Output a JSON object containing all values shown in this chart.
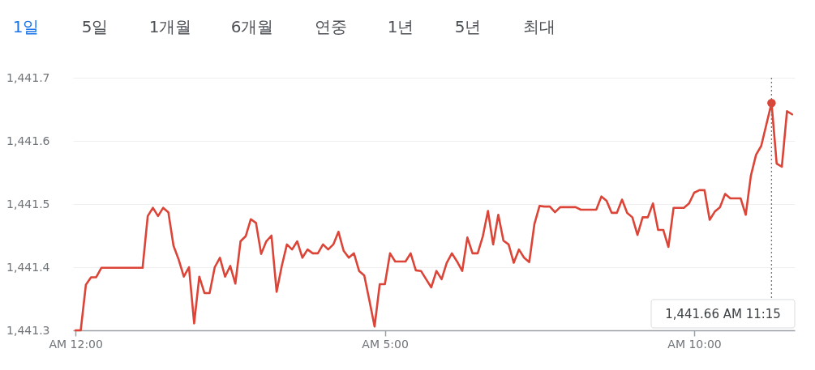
{
  "chart_data": {
    "type": "line",
    "categories": [
      "AM 12:00",
      null,
      null,
      null,
      null,
      null,
      null,
      null,
      null,
      null,
      null,
      null,
      null,
      null,
      null,
      null,
      null,
      null,
      null,
      null,
      null,
      null,
      null,
      null,
      null,
      null,
      null,
      null,
      null,
      null,
      null,
      null,
      null,
      null,
      null,
      null,
      null,
      null,
      null,
      null,
      null,
      null,
      null,
      null,
      null,
      null,
      null,
      null,
      null,
      null,
      null,
      null,
      null,
      null,
      null,
      null,
      null,
      null,
      null,
      null,
      "AM 5:00",
      null,
      null,
      null,
      null,
      null,
      null,
      null,
      null,
      null,
      null,
      null,
      null,
      null,
      null,
      null,
      null,
      null,
      null,
      null,
      null,
      null,
      null,
      null,
      null,
      null,
      null,
      null,
      null,
      null,
      null,
      null,
      null,
      null,
      null,
      null,
      null,
      null,
      null,
      null,
      null,
      null,
      null,
      null,
      null,
      null,
      null,
      null,
      null,
      null,
      null,
      null,
      null,
      null,
      null,
      null,
      null,
      null,
      null,
      null,
      "AM 10:00",
      null,
      null,
      null,
      null,
      null,
      null,
      null,
      null,
      null,
      null,
      null,
      null,
      null,
      null,
      null,
      null,
      null,
      null,
      null
    ],
    "series": [
      {
        "color": "#db4437",
        "values": [
          1441.3,
          1441.3,
          1441.372,
          1441.384,
          1441.384,
          1441.399,
          1441.399,
          1441.399,
          1441.399,
          1441.399,
          1441.399,
          1441.399,
          1441.399,
          1441.399,
          1441.481,
          1441.494,
          1441.481,
          1441.494,
          1441.487,
          1441.434,
          1441.412,
          1441.385,
          1441.4,
          1441.311,
          1441.385,
          1441.359,
          1441.359,
          1441.4,
          1441.415,
          1441.385,
          1441.402,
          1441.374,
          1441.441,
          1441.449,
          1441.476,
          1441.47,
          1441.421,
          1441.441,
          1441.45,
          1441.361,
          1441.402,
          1441.436,
          1441.428,
          1441.441,
          1441.415,
          1441.428,
          1441.422,
          1441.422,
          1441.436,
          1441.428,
          1441.436,
          1441.456,
          1441.426,
          1441.415,
          1441.422,
          1441.394,
          1441.387,
          1441.347,
          1441.306,
          1441.373,
          1441.373,
          1441.422,
          1441.409,
          1441.409,
          1441.409,
          1441.422,
          1441.395,
          1441.394,
          1441.381,
          1441.368,
          1441.394,
          1441.381,
          1441.407,
          1441.422,
          1441.409,
          1441.394,
          1441.447,
          1441.422,
          1441.422,
          1441.449,
          1441.489,
          1441.436,
          1441.483,
          1441.442,
          1441.436,
          1441.407,
          1441.428,
          1441.415,
          1441.408,
          1441.468,
          1441.497,
          1441.496,
          1441.496,
          1441.487,
          1441.495,
          1441.495,
          1441.495,
          1441.495,
          1441.491,
          1441.491,
          1441.491,
          1441.491,
          1441.512,
          1441.505,
          1441.486,
          1441.486,
          1441.507,
          1441.486,
          1441.479,
          1441.451,
          1441.479,
          1441.479,
          1441.501,
          1441.459,
          1441.459,
          1441.432,
          1441.494,
          1441.494,
          1441.494,
          1441.501,
          1441.518,
          1441.522,
          1441.522,
          1441.475,
          1441.488,
          1441.495,
          1441.516,
          1441.509,
          1441.509,
          1441.509,
          1441.483,
          1441.545,
          1441.578,
          1441.592,
          1441.626,
          1441.66,
          1441.564,
          1441.559,
          1441.647,
          1441.642
        ]
      },
      {
        "type": "scatter",
        "color": "#db4437",
        "values": [
          null,
          null,
          null,
          null,
          null,
          null,
          null,
          null,
          null,
          null,
          null,
          null,
          null,
          null,
          null,
          null,
          null,
          null,
          null,
          null,
          null,
          null,
          null,
          null,
          null,
          null,
          null,
          null,
          null,
          null,
          null,
          null,
          null,
          null,
          null,
          null,
          null,
          null,
          null,
          null,
          null,
          null,
          null,
          null,
          null,
          null,
          null,
          null,
          null,
          null,
          null,
          null,
          null,
          null,
          null,
          null,
          null,
          null,
          null,
          null,
          null,
          null,
          null,
          null,
          null,
          null,
          null,
          null,
          null,
          null,
          null,
          null,
          null,
          null,
          null,
          null,
          null,
          null,
          null,
          null,
          null,
          null,
          null,
          null,
          null,
          null,
          null,
          null,
          null,
          null,
          null,
          null,
          null,
          null,
          null,
          null,
          null,
          null,
          null,
          null,
          null,
          null,
          null,
          null,
          null,
          null,
          null,
          null,
          null,
          null,
          null,
          null,
          null,
          null,
          null,
          null,
          null,
          null,
          null,
          null,
          null,
          null,
          null,
          null,
          null,
          null,
          null,
          null,
          null,
          null,
          null,
          null,
          null,
          null,
          null,
          1441.66,
          null,
          null,
          null,
          null
        ]
      }
    ],
    "ylim": [
      1441.3,
      1441.7
    ],
    "yticks": [
      {
        "value": 1441.3,
        "label": "1,441.3"
      },
      {
        "value": 1441.4,
        "label": "1,441.4"
      },
      {
        "value": 1441.5,
        "label": "1,441.5"
      },
      {
        "value": 1441.6,
        "label": "1,441.6"
      },
      {
        "value": 1441.7,
        "label": "1,441.7"
      }
    ],
    "grid": "y",
    "annotations": [
      "1일",
      "5일",
      "1개월",
      "6개월",
      "연중",
      "1년",
      "5년",
      "최대",
      "1,441.66  AM 11:15"
    ]
  }
}
